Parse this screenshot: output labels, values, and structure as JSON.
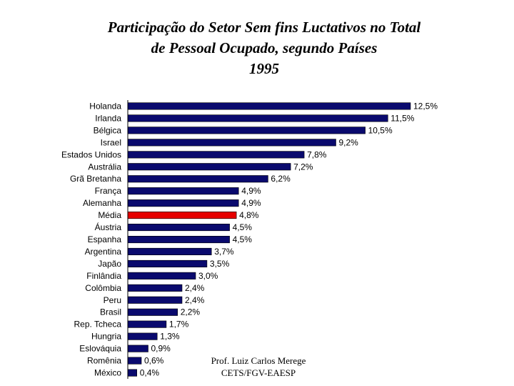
{
  "chart_data": {
    "type": "bar",
    "orientation": "horizontal",
    "title": [
      "Participação do Setor Sem fins Luctativos no Total",
      "de Pessoal Ocupado, segundo Países",
      "1995"
    ],
    "xlabel": "",
    "ylabel": "",
    "xlim": [
      0,
      12.5
    ],
    "grid": false,
    "categories": [
      "Holanda",
      "Irlanda",
      "Bélgica",
      "Israel",
      "Estados Unidos",
      "Austrália",
      "Grã Bretanha",
      "França",
      "Alemanha",
      "Média",
      "Áustria",
      "Espanha",
      "Argentina",
      "Japão",
      "Finlândia",
      "Colômbia",
      "Peru",
      "Brasil",
      "Rep. Tcheca",
      "Hungria",
      "Eslováquia",
      "Romênia",
      "México"
    ],
    "values": [
      12.5,
      11.5,
      10.5,
      9.2,
      7.8,
      7.2,
      6.2,
      4.9,
      4.9,
      4.8,
      4.5,
      4.5,
      3.7,
      3.5,
      3.0,
      2.4,
      2.4,
      2.2,
      1.7,
      1.3,
      0.9,
      0.6,
      0.4
    ],
    "value_labels": [
      "12,5%",
      "11,5%",
      "10,5%",
      "9,2%",
      "7,8%",
      "7,2%",
      "6,2%",
      "4,9%",
      "4,9%",
      "4,8%",
      "4,5%",
      "4,5%",
      "3,7%",
      "3,5%",
      "3,0%",
      "2,4%",
      "2,4%",
      "2,2%",
      "1,7%",
      "1,3%",
      "0,9%",
      "0,6%",
      "0,4%"
    ],
    "highlight_category": "Média"
  },
  "colors": {
    "bar": "#0a0a6e",
    "highlight": "#e60000",
    "axis": "#000000"
  },
  "footer": {
    "credit_line1": "Prof. Luiz Carlos Merege",
    "credit_line2": "CETS/FGV-EAESP"
  }
}
